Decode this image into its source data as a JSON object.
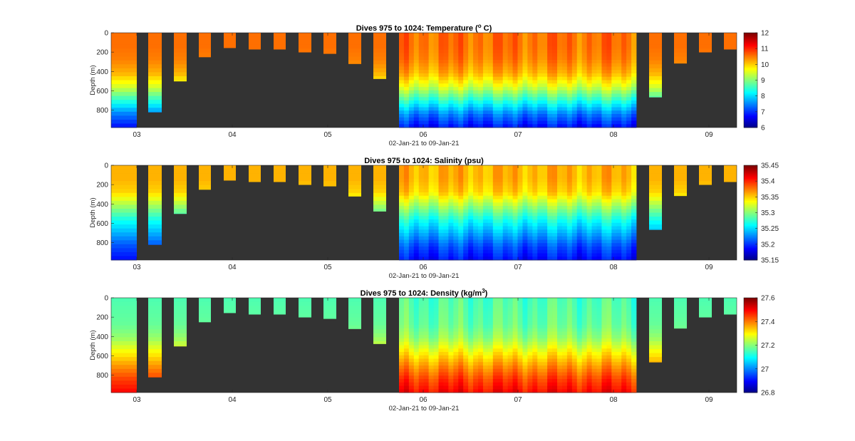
{
  "chart_data": [
    {
      "type": "heatmap",
      "title_main": "Dives 975 to 1024: Temperature (",
      "title_sup": "o",
      "title_tail": " C)",
      "ylabel": "Depth (m)",
      "xlabel": "02-Jan-21 to 09-Jan-21",
      "x_ticks": [
        "03",
        "04",
        "05",
        "06",
        "07",
        "08",
        "09"
      ],
      "y_ticks": [
        "0",
        "200",
        "400",
        "600",
        "800"
      ],
      "ylim": [
        0,
        980
      ],
      "colorbar_ticks": [
        "12",
        "11",
        "10",
        "9",
        "8",
        "7",
        "6"
      ],
      "clim": [
        6,
        12
      ],
      "profile": [
        10.6,
        10.6,
        10.5,
        10.2,
        9.5,
        8.5,
        7.5,
        6.8
      ]
    },
    {
      "type": "heatmap",
      "title_main": "Dives 975 to 1024: Salinity (psu)",
      "title_sup": "",
      "title_tail": "",
      "ylabel": "Depth (m)",
      "xlabel": "02-Jan-21 to 09-Jan-21",
      "x_ticks": [
        "03",
        "04",
        "05",
        "06",
        "07",
        "08",
        "09"
      ],
      "y_ticks": [
        "0",
        "200",
        "400",
        "600",
        "800"
      ],
      "ylim": [
        0,
        980
      ],
      "colorbar_ticks": [
        "35.45",
        "35.4",
        "35.35",
        "35.3",
        "35.25",
        "35.2",
        "35.15"
      ],
      "clim": [
        35.15,
        35.45
      ],
      "profile": [
        35.36,
        35.36,
        35.35,
        35.31,
        35.27,
        35.24,
        35.21,
        35.19
      ]
    },
    {
      "type": "heatmap",
      "title_main": "Dives 975 to 1024: Density (kg/m",
      "title_sup": "3",
      "title_tail": ")",
      "ylabel": "Depth (m)",
      "xlabel": "02-Jan-21 to 09-Jan-21",
      "x_ticks": [
        "03",
        "04",
        "05",
        "06",
        "07",
        "08",
        "09"
      ],
      "y_ticks": [
        "0",
        "200",
        "400",
        "600",
        "800"
      ],
      "ylim": [
        0,
        980
      ],
      "colorbar_ticks": [
        "27.6",
        "27.4",
        "27.2",
        "27",
        "26.8"
      ],
      "clim": [
        26.8,
        27.6
      ],
      "profile": [
        27.16,
        27.17,
        27.18,
        27.22,
        27.3,
        27.38,
        27.45,
        27.5
      ]
    }
  ],
  "colors": {
    "background": "#333333",
    "axis": "#262626"
  }
}
